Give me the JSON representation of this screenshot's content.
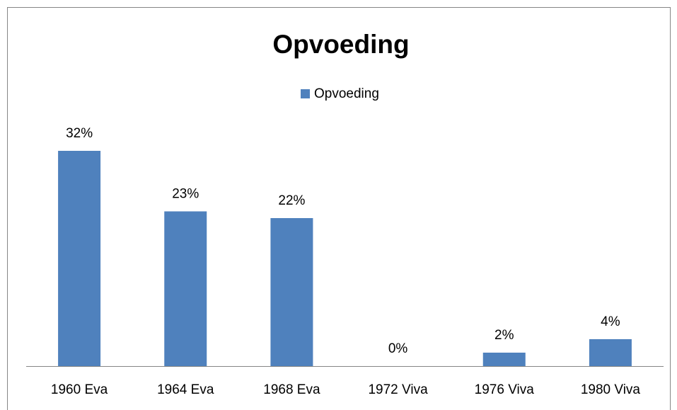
{
  "chart_data": {
    "type": "bar",
    "title": "Opvoeding",
    "categories": [
      "1960 Eva",
      "1964 Eva",
      "1968 Eva",
      "1972 Viva",
      "1976 Viva",
      "1980 Viva"
    ],
    "series": [
      {
        "name": "Opvoeding",
        "color": "#4f81bd",
        "values": [
          32,
          23,
          22,
          0,
          2,
          4
        ],
        "value_labels": [
          "32%",
          "23%",
          "22%",
          "0%",
          "2%",
          "4%"
        ]
      }
    ]
  }
}
